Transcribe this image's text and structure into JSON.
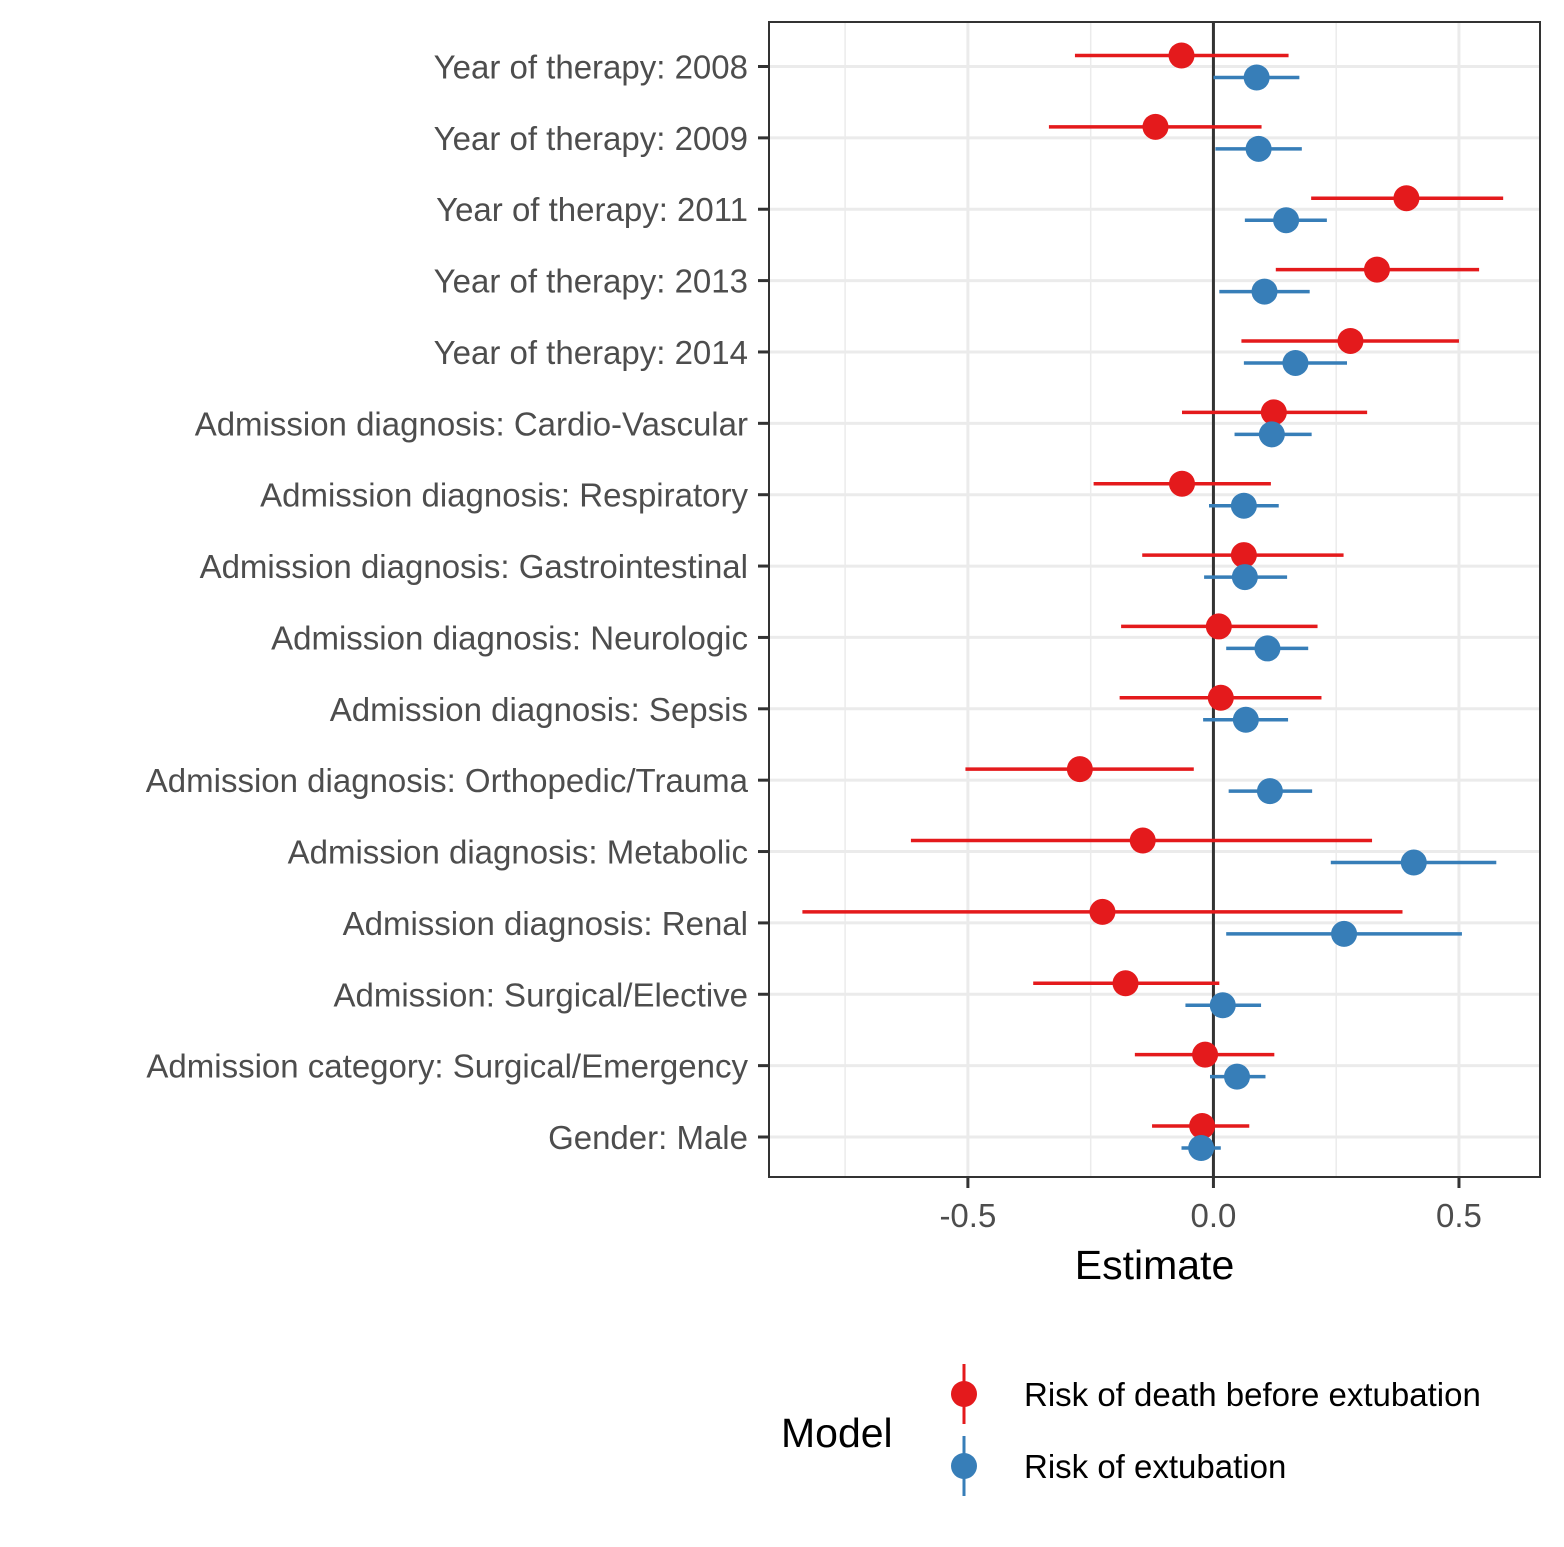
{
  "chart_data": {
    "type": "forest",
    "xlabel": "Estimate",
    "xlim": [
      -0.905,
      0.665
    ],
    "xticks": [
      -0.5,
      0.0,
      0.5
    ],
    "xtick_labels": [
      "-0.5",
      "0.0",
      "0.5"
    ],
    "reference_line": 0.0,
    "grid": true,
    "legend": {
      "title": "Model",
      "placement": "bottom"
    },
    "categories": [
      "Year of therapy: 2008",
      "Year of therapy: 2009",
      "Year of therapy: 2011",
      "Year of therapy: 2013",
      "Year of therapy: 2014",
      "Admission diagnosis: Cardio-Vascular",
      "Admission diagnosis: Respiratory",
      "Admission diagnosis: Gastrointestinal",
      "Admission diagnosis: Neurologic",
      "Admission diagnosis: Sepsis",
      "Admission diagnosis: Orthopedic/Trauma",
      "Admission diagnosis: Metabolic",
      "Admission diagnosis: Renal",
      "Admission: Surgical/Elective",
      "Admission category: Surgical/Emergency",
      "Gender: Male"
    ],
    "series": [
      {
        "name": "Risk of death before extubation",
        "color": "#e41a1c",
        "estimate": [
          -0.065,
          -0.118,
          0.393,
          0.333,
          0.279,
          0.123,
          -0.064,
          0.062,
          0.011,
          0.015,
          -0.272,
          -0.144,
          -0.226,
          -0.179,
          -0.017,
          -0.023
        ],
        "lower": [
          -0.282,
          -0.335,
          0.199,
          0.127,
          0.057,
          -0.064,
          -0.244,
          -0.145,
          -0.188,
          -0.191,
          -0.505,
          -0.616,
          -0.837,
          -0.367,
          -0.16,
          -0.125
        ],
        "upper": [
          0.153,
          0.098,
          0.59,
          0.541,
          0.5,
          0.313,
          0.117,
          0.265,
          0.212,
          0.22,
          -0.04,
          0.323,
          0.385,
          0.012,
          0.124,
          0.073
        ]
      },
      {
        "name": "Risk of extubation",
        "color": "#377eb8",
        "estimate": [
          0.088,
          0.092,
          0.148,
          0.104,
          0.167,
          0.119,
          0.062,
          0.064,
          0.11,
          0.066,
          0.115,
          0.408,
          0.266,
          0.019,
          0.048,
          -0.025
        ],
        "lower": [
          0.0,
          0.004,
          0.064,
          0.012,
          0.062,
          0.043,
          -0.009,
          -0.019,
          0.026,
          -0.021,
          0.031,
          0.239,
          0.026,
          -0.057,
          -0.007,
          -0.065
        ],
        "upper": [
          0.175,
          0.18,
          0.231,
          0.196,
          0.272,
          0.2,
          0.133,
          0.15,
          0.193,
          0.152,
          0.201,
          0.576,
          0.506,
          0.097,
          0.106,
          0.015
        ]
      }
    ]
  }
}
